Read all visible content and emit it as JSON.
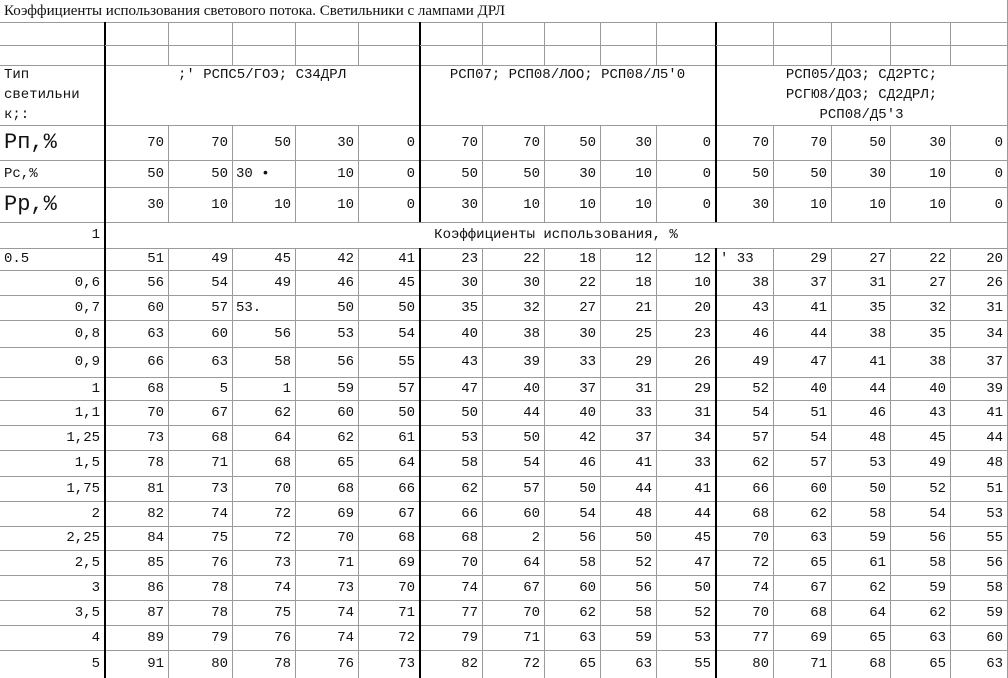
{
  "title": "Коэффициенты использования светового потока. Светильники с лампами ДРЛ",
  "header": {
    "type_label": [
      "Тип",
      "светильни",
      "к;:"
    ],
    "groups": [
      [
        ";'  РСПС5/ГОЭ; С34ДРЛ"
      ],
      [
        "РСП07; РСП08/ЛОО; РСП08/Л5'0"
      ],
      [
        "РСП05/ДОЗ; СД2РТС;",
        "РСГЮ8/ДОЗ; СД2ДРЛ;",
        "РСП08/Д5'3"
      ]
    ]
  },
  "param_rows": [
    {
      "label": "Рп,%",
      "values": [
        "70",
        "70",
        "50",
        "30",
        "0",
        "70",
        "70",
        "50",
        "30",
        "0",
        "70",
        "70",
        "50",
        "30",
        "0"
      ]
    },
    {
      "label": "Рс,%",
      "values": [
        "50",
        "50",
        "30 •",
        "10",
        "0",
        "50",
        "50",
        "30",
        "10",
        "0",
        "50",
        "50",
        "30",
        "10",
        "0"
      ]
    },
    {
      "label": "Рр,%",
      "values": [
        "30",
        "10",
        "10",
        "10",
        "0",
        "30",
        "10",
        "10",
        "10",
        "0",
        "30",
        "10",
        "10",
        "10",
        "0"
      ]
    }
  ],
  "section_row": {
    "label": "1",
    "text": "Коэффициенты использования, %"
  },
  "rows": [
    {
      "label": "0.5",
      "values": [
        "51",
        "49",
        "45",
        "42",
        "41",
        "23",
        "22",
        "18",
        "12",
        "12",
        "' 33",
        "29",
        "27",
        "22",
        "20"
      ]
    },
    {
      "label": "0,6",
      "values": [
        "56",
        "54",
        "49",
        "46",
        "45",
        "30",
        "30",
        "22",
        "18",
        "10",
        "38",
        "37",
        "31",
        "27",
        "26"
      ]
    },
    {
      "label": "0,7",
      "values": [
        "60",
        "57",
        "53.",
        "50",
        "50",
        "35",
        "32",
        "27",
        "21",
        "20",
        "43",
        "41",
        "35",
        "32",
        "31"
      ]
    },
    {
      "label": "0,8",
      "values": [
        "63",
        "60",
        "56",
        "53",
        "54",
        "40",
        "38",
        "30",
        "25",
        "23",
        "46",
        "44",
        "38",
        "35",
        "34"
      ]
    },
    {
      "label": "0,9",
      "values": [
        "66",
        "63",
        "58",
        "56",
        "55",
        "43",
        "39",
        "33",
        "29",
        "26",
        "49",
        "47",
        "41",
        "38",
        "37"
      ]
    },
    {
      "label": "1",
      "values": [
        "68",
        "5",
        "1",
        "59",
        "57",
        "47",
        "40",
        "37",
        "31",
        "29",
        "52",
        "40",
        "44",
        "40",
        "39"
      ]
    },
    {
      "label": "1,1",
      "values": [
        "70",
        "67",
        "62",
        "60",
        "50",
        "50",
        "44",
        "40",
        "33",
        "31",
        "54",
        "51",
        "46",
        "43",
        "41"
      ]
    },
    {
      "label": "1,25",
      "values": [
        "73",
        "68",
        "64",
        "62",
        "61",
        "53",
        "50",
        "42",
        "37",
        "34",
        "57",
        "54",
        "48",
        "45",
        "44"
      ]
    },
    {
      "label": "1,5",
      "values": [
        "78",
        "71",
        "68",
        "65",
        "64",
        "58",
        "54",
        "46",
        "41",
        "33",
        "62",
        "57",
        "53",
        "49",
        "48"
      ]
    },
    {
      "label": "1,75",
      "values": [
        "81",
        "73",
        "70",
        "68",
        "66",
        "62",
        "57",
        "50",
        "44",
        "41",
        "66",
        "60",
        "50",
        "52",
        "51"
      ]
    },
    {
      "label": "2",
      "values": [
        "82",
        "74",
        "72",
        "69",
        "67",
        "66",
        "60",
        "54",
        "48",
        "44",
        "68",
        "62",
        "58",
        "54",
        "53"
      ]
    },
    {
      "label": "2,25",
      "values": [
        "84",
        "75",
        "72",
        "70",
        "68",
        "68",
        "2",
        "56",
        "50",
        "45",
        "70",
        "63",
        "59",
        "56",
        "55"
      ]
    },
    {
      "label": "2,5",
      "values": [
        "85",
        "76",
        "73",
        "71",
        "69",
        "70",
        "64",
        "58",
        "52",
        "47",
        "72",
        "65",
        "61",
        "58",
        "56"
      ]
    },
    {
      "label": "3",
      "values": [
        "86",
        "78",
        "74",
        "73",
        "70",
        "74",
        "67",
        "60",
        "56",
        "50",
        "74",
        "67",
        "62",
        "59",
        "58"
      ]
    },
    {
      "label": "3,5",
      "values": [
        "87",
        "78",
        "75",
        "74",
        "71",
        "77",
        "70",
        "62",
        "58",
        "52",
        "70",
        "68",
        "64",
        "62",
        "59"
      ]
    },
    {
      "label": "4",
      "values": [
        "89",
        "79",
        "76",
        "74",
        "72",
        "79",
        "71",
        "63",
        "59",
        "53",
        "77",
        "69",
        "65",
        "63",
        "60"
      ]
    },
    {
      "label": "5",
      "values": [
        "91",
        "80",
        "78",
        "76",
        "73",
        "82",
        "72",
        "65",
        "63",
        "55",
        "80",
        "71",
        "68",
        "65",
        "63"
      ]
    }
  ]
}
